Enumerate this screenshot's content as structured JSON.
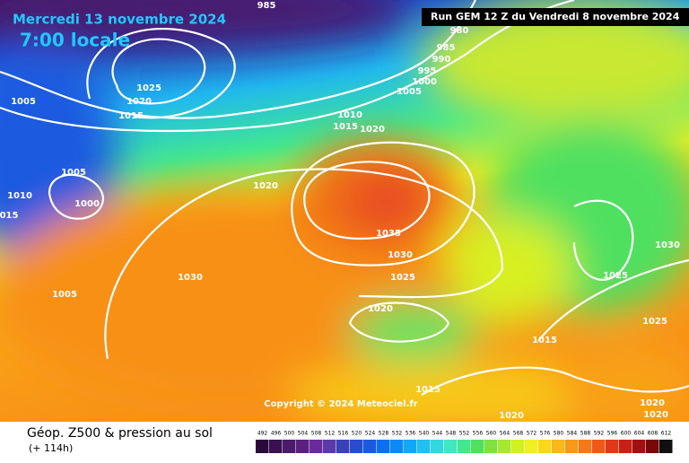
{
  "header": {
    "date": "Mercredi 13 novembre 2024",
    "time": "7:00 locale",
    "run": "Run GEM 12 Z du Vendredi 8 novembre 2024"
  },
  "copyright": "Copyright © 2024 Meteociel.fr",
  "isobar_labels": [
    "985",
    "980",
    "985",
    "990",
    "995",
    "1000",
    "1005",
    "1025",
    "1020",
    "1015",
    "1005",
    "1010",
    "1015",
    "1020",
    "1005",
    "1000",
    "1010",
    "015",
    "1020",
    "1035",
    "1030",
    "1025",
    "1030",
    "1005",
    "1020",
    "1015",
    "1025",
    "1030",
    "1025",
    "1015",
    "1020",
    "1020",
    "1020"
  ],
  "footer": {
    "title": "Géop. Z500 & pression au sol",
    "lead": "(+ 114h)"
  },
  "color_scale": {
    "values": [
      492,
      496,
      500,
      504,
      508,
      512,
      516,
      520,
      524,
      528,
      532,
      536,
      540,
      544,
      548,
      552,
      556,
      560,
      564,
      568,
      572,
      576,
      580,
      584,
      588,
      592,
      596,
      600,
      604,
      608,
      612
    ],
    "colors": [
      "#2a0a3a",
      "#3a1050",
      "#4b1a6a",
      "#5a2080",
      "#6a2a9a",
      "#5a3aa8",
      "#3a40b8",
      "#2a4ad0",
      "#1a5ae0",
      "#0a70f0",
      "#0a8af8",
      "#10a8f8",
      "#20c0f0",
      "#30d8e0",
      "#40e8c0",
      "#40e890",
      "#50e060",
      "#80e040",
      "#a8e830",
      "#d0f020",
      "#f0f020",
      "#f8d818",
      "#f8b818",
      "#f89818",
      "#f87818",
      "#f05818",
      "#e03818",
      "#c82018",
      "#a01010",
      "#780808",
      "#101010"
    ]
  }
}
